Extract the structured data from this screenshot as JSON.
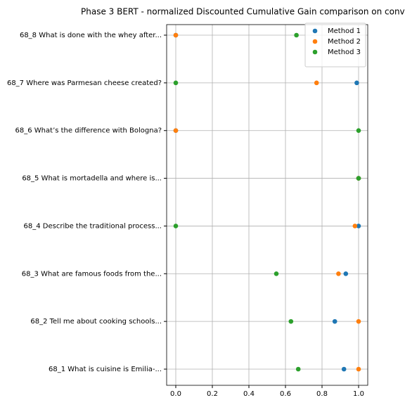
{
  "chart_data": {
    "type": "scatter",
    "title": "Phase 3 BERT - normalized Discounted Cumulative Gain comparison on conv",
    "categories": [
      "68_1 What is cuisine is Emilia-...",
      "68_2 Tell me about cooking schools...",
      "68_3 What are famous foods from the...",
      "68_4 Describe the traditional process...",
      "68_5 What is mortadella and where is...",
      "68_6 What’s the difference with Bologna?",
      "68_7 Where was Parmesan cheese created?",
      "68_8 What is done with the whey after..."
    ],
    "series": [
      {
        "name": "Method 1",
        "color": "#1f77b4",
        "values": [
          0.92,
          0.87,
          0.93,
          1.0,
          1.0,
          0,
          0.99,
          0
        ]
      },
      {
        "name": "Method 2",
        "color": "#ff7f0e",
        "values": [
          1.0,
          1.0,
          0.89,
          0.98,
          1.0,
          0,
          0.77,
          0
        ]
      },
      {
        "name": "Method 3",
        "color": "#2ca02c",
        "values": [
          0.67,
          0.63,
          0.55,
          0,
          1.0,
          1.0,
          0,
          0.66
        ]
      }
    ],
    "xlim": [
      -0.05,
      1.05
    ],
    "xticks": [
      {
        "value": 0,
        "label": "0.0"
      },
      0.2,
      0.4,
      0.6,
      0.8,
      {
        "value": 1,
        "label": "1.0"
      }
    ],
    "grid": true,
    "legend": "upper right"
  }
}
